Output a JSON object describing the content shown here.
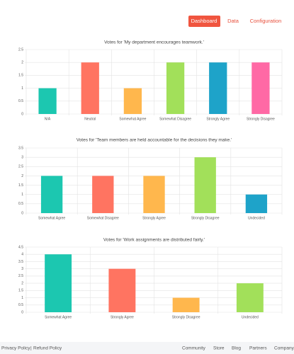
{
  "nav": {
    "items": [
      "Dashboard",
      "Data",
      "Configuration"
    ]
  },
  "chart_data": [
    {
      "type": "bar",
      "title": "Votes for 'My department encourages teamwork.'",
      "categories": [
        "N/A",
        "Neutral",
        "Somewhat Agree",
        "Somewhat Disagree",
        "Strongly Agree",
        "Strongly Disagree"
      ],
      "values": [
        1,
        2,
        1,
        2,
        2,
        2
      ],
      "colors": [
        "#1cc7b0",
        "#ff7461",
        "#ffb74d",
        "#a2e05a",
        "#1ea3c9",
        "#ff69a5"
      ],
      "ylim": [
        0,
        2.5
      ],
      "yticks": [
        0,
        0.5,
        1,
        1.5,
        2,
        2.5
      ],
      "grid": true
    },
    {
      "type": "bar",
      "title": "Votes for 'Team members are held accountable for the decisions they make.'",
      "categories": [
        "Somewhat Agree",
        "Somewhat Disagree",
        "Strongly Agree",
        "Strongly Disagree",
        "Undecided"
      ],
      "values": [
        2,
        2,
        2,
        3,
        1
      ],
      "colors": [
        "#1cc7b0",
        "#ff7461",
        "#ffb74d",
        "#a2e05a",
        "#1ea3c9"
      ],
      "ylim": [
        0,
        3.5
      ],
      "yticks": [
        0,
        0.5,
        1,
        1.5,
        2,
        2.5,
        3,
        3.5
      ],
      "grid": true
    },
    {
      "type": "bar",
      "title": "Votes for 'Work assignments are distributed fairly.'",
      "categories": [
        "Somewhat Agree",
        "Strongly Agree",
        "Strongly Disagree",
        "Undecided"
      ],
      "values": [
        4,
        3,
        1,
        2
      ],
      "colors": [
        "#1cc7b0",
        "#ff7461",
        "#ffb74d",
        "#a2e05a"
      ],
      "ylim": [
        0,
        4.5
      ],
      "yticks": [
        0,
        0.5,
        1,
        1.5,
        2,
        2.5,
        3,
        3.5,
        4,
        4.5
      ],
      "grid": true
    }
  ],
  "footer": {
    "left": [
      "Privacy Policy",
      "Refund Policy"
    ],
    "separator": "|",
    "right": [
      "Community",
      "Store",
      "Blog",
      "Partners",
      "Company"
    ]
  }
}
